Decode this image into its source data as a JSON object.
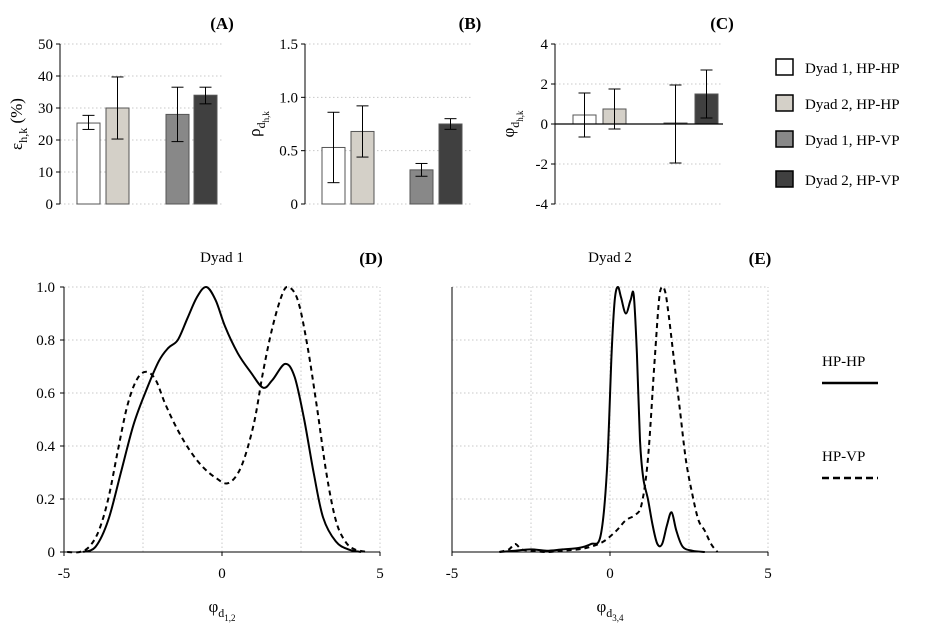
{
  "chart_data": [
    {
      "id": "A",
      "type": "bar",
      "panel_label": "(A)",
      "ylabel_main": "ε",
      "ylabel_sub": "h,k",
      "ylabel_suffix": " (%)",
      "ylim": [
        0,
        50
      ],
      "yticks": [
        0,
        10,
        20,
        30,
        40,
        50
      ],
      "ytick_labels": [
        "0",
        "10",
        "20",
        "30",
        "40",
        "50"
      ],
      "bars": [
        {
          "series": "Dyad 1, HP-HP",
          "value": 25.3,
          "err_low": 23.3,
          "err_high": 27.7
        },
        {
          "series": "Dyad 2, HP-HP",
          "value": 30.0,
          "err_low": 20.3,
          "err_high": 39.7
        },
        {
          "series": "Dyad 1, HP-VP",
          "value": 28.0,
          "err_low": 19.5,
          "err_high": 36.5
        },
        {
          "series": "Dyad 2, HP-VP",
          "value": 34.0,
          "err_low": 31.3,
          "err_high": 36.5
        }
      ]
    },
    {
      "id": "B",
      "type": "bar",
      "panel_label": "(B)",
      "ylabel_main": "ρ",
      "ylabel_sub": "d",
      "ylabel_subsub": "h,k",
      "ylim": [
        0,
        1.5
      ],
      "yticks": [
        0,
        0.5,
        1.0,
        1.5
      ],
      "ytick_labels": [
        "0",
        "0.5",
        "1.0",
        "1.5"
      ],
      "bars": [
        {
          "series": "Dyad 1, HP-HP",
          "value": 0.53,
          "err_low": 0.2,
          "err_high": 0.86
        },
        {
          "series": "Dyad 2, HP-HP",
          "value": 0.68,
          "err_low": 0.44,
          "err_high": 0.92
        },
        {
          "series": "Dyad 1, HP-VP",
          "value": 0.32,
          "err_low": 0.26,
          "err_high": 0.38
        },
        {
          "series": "Dyad 2, HP-VP",
          "value": 0.75,
          "err_low": 0.7,
          "err_high": 0.8
        }
      ]
    },
    {
      "id": "C",
      "type": "bar",
      "panel_label": "(C)",
      "ylabel_main": "φ",
      "ylabel_sub": "d",
      "ylabel_subsub": "h,k",
      "ylim": [
        -4,
        4
      ],
      "yticks": [
        -4,
        -2,
        0,
        2,
        4
      ],
      "ytick_labels": [
        "-4",
        "-2",
        "0",
        "2",
        "4"
      ],
      "bars": [
        {
          "series": "Dyad 1, HP-HP",
          "value": 0.45,
          "err_low": -0.65,
          "err_high": 1.55
        },
        {
          "series": "Dyad 2, HP-HP",
          "value": 0.75,
          "err_low": -0.25,
          "err_high": 1.75
        },
        {
          "series": "Dyad 1, HP-VP",
          "value": 0.05,
          "err_low": -1.95,
          "err_high": 1.95
        },
        {
          "series": "Dyad 2, HP-VP",
          "value": 1.5,
          "err_low": 0.3,
          "err_high": 2.7
        }
      ]
    },
    {
      "id": "D",
      "type": "line",
      "panel_label": "(D)",
      "title": "Dyad 1",
      "xlabel_main": "φ",
      "xlabel_sub": "d",
      "xlabel_subsub": "1,2",
      "xlim": [
        -5,
        5
      ],
      "ylim": [
        0,
        1
      ],
      "xticks": [
        -5,
        0,
        5
      ],
      "xtick_labels": [
        "-5",
        "0",
        "5"
      ],
      "yticks": [
        0,
        0.2,
        0.4,
        0.6,
        0.8,
        1.0
      ],
      "ytick_labels": [
        "0",
        "0.2",
        "0.4",
        "0.6",
        "0.8",
        "1.0"
      ],
      "series": [
        {
          "name": "HP-HP",
          "style": "solid",
          "x": [
            -4.4,
            -4.0,
            -3.6,
            -3.2,
            -2.8,
            -2.4,
            -2.0,
            -1.7,
            -1.4,
            -1.1,
            -0.8,
            -0.5,
            -0.2,
            0.1,
            0.5,
            0.9,
            1.3,
            1.6,
            2.0,
            2.3,
            2.6,
            2.9,
            3.2,
            3.6,
            4.0,
            4.4
          ],
          "y": [
            0.0,
            0.02,
            0.12,
            0.3,
            0.48,
            0.61,
            0.72,
            0.77,
            0.8,
            0.88,
            0.96,
            1.0,
            0.95,
            0.85,
            0.75,
            0.68,
            0.62,
            0.65,
            0.71,
            0.66,
            0.5,
            0.3,
            0.13,
            0.04,
            0.01,
            0.0
          ]
        },
        {
          "name": "HP-VP",
          "style": "dashed",
          "x": [
            -4.9,
            -4.5,
            -4.2,
            -3.9,
            -3.6,
            -3.3,
            -3.0,
            -2.7,
            -2.4,
            -2.1,
            -1.8,
            -1.4,
            -1.0,
            -0.6,
            -0.2,
            0.2,
            0.6,
            1.0,
            1.3,
            1.6,
            1.9,
            2.1,
            2.4,
            2.7,
            3.0,
            3.3,
            3.6,
            3.9,
            4.2,
            4.6
          ],
          "y": [
            0.0,
            0.0,
            0.02,
            0.08,
            0.2,
            0.38,
            0.55,
            0.65,
            0.68,
            0.65,
            0.56,
            0.46,
            0.38,
            0.32,
            0.28,
            0.26,
            0.32,
            0.48,
            0.68,
            0.85,
            0.97,
            1.0,
            0.95,
            0.78,
            0.55,
            0.3,
            0.12,
            0.04,
            0.01,
            0.0
          ]
        }
      ]
    },
    {
      "id": "E",
      "type": "line",
      "panel_label": "(E)",
      "title": "Dyad 2",
      "xlabel_main": "φ",
      "xlabel_sub": "d",
      "xlabel_subsub": "3,4",
      "xlim": [
        -5,
        5
      ],
      "ylim": [
        0,
        1
      ],
      "xticks": [
        -5,
        0,
        5
      ],
      "xtick_labels": [
        "-5",
        "0",
        "5"
      ],
      "series": [
        {
          "name": "HP-HP",
          "style": "solid",
          "x": [
            -3.5,
            -3.0,
            -2.5,
            -2.0,
            -1.5,
            -1.0,
            -0.6,
            -0.3,
            -0.1,
            0.05,
            0.15,
            0.25,
            0.35,
            0.5,
            0.65,
            0.75,
            0.85,
            0.95,
            1.05,
            1.2,
            1.35,
            1.5,
            1.65,
            1.8,
            1.95,
            2.1,
            2.3,
            2.6,
            3.0
          ],
          "y": [
            0.0,
            0.005,
            0.01,
            0.005,
            0.01,
            0.015,
            0.03,
            0.06,
            0.3,
            0.75,
            0.95,
            1.0,
            0.96,
            0.9,
            0.95,
            0.97,
            0.75,
            0.42,
            0.28,
            0.2,
            0.1,
            0.03,
            0.03,
            0.1,
            0.15,
            0.08,
            0.02,
            0.005,
            0.0
          ]
        },
        {
          "name": "HP-VP",
          "style": "dashed",
          "x": [
            -3.5,
            -3.2,
            -3.0,
            -2.8,
            -2.5,
            -2.0,
            -1.5,
            -1.0,
            -0.6,
            -0.2,
            0.2,
            0.5,
            0.8,
            1.0,
            1.2,
            1.4,
            1.55,
            1.65,
            1.75,
            1.85,
            2.0,
            2.2,
            2.4,
            2.6,
            2.8,
            3.0,
            3.2,
            3.4
          ],
          "y": [
            0.0,
            0.01,
            0.03,
            0.01,
            0.005,
            0.0,
            0.005,
            0.01,
            0.02,
            0.04,
            0.08,
            0.12,
            0.14,
            0.18,
            0.35,
            0.7,
            0.95,
            1.0,
            0.98,
            0.9,
            0.75,
            0.55,
            0.35,
            0.22,
            0.12,
            0.08,
            0.03,
            0.0
          ]
        }
      ]
    }
  ],
  "legend_top": {
    "items": [
      {
        "label": "Dyad 1, HP-HP",
        "color": "#ffffff"
      },
      {
        "label": "Dyad 2, HP-HP",
        "color": "#d4d0c8"
      },
      {
        "label": "Dyad 1, HP-VP",
        "color": "#888888"
      },
      {
        "label": "Dyad 2, HP-VP",
        "color": "#404040"
      }
    ]
  },
  "legend_bottom": {
    "items": [
      {
        "label": "HP-HP",
        "style": "solid"
      },
      {
        "label": "HP-VP",
        "style": "dashed"
      }
    ]
  },
  "colors": {
    "bar_stroke": "#555555",
    "grid": "#c8c8c8",
    "line": "#000000"
  }
}
